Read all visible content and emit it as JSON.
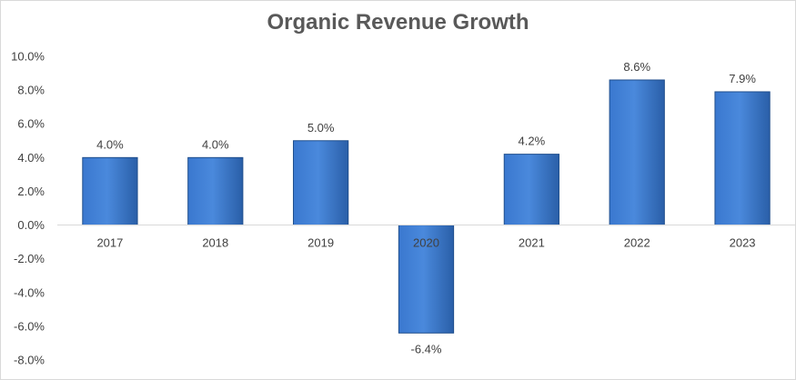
{
  "chart_data": {
    "type": "bar",
    "title": "Organic Revenue Growth",
    "categories": [
      "2017",
      "2018",
      "2019",
      "2020",
      "2021",
      "2022",
      "2023"
    ],
    "values": [
      4.0,
      4.0,
      5.0,
      -6.4,
      4.2,
      8.6,
      7.9
    ],
    "data_labels": [
      "4.0%",
      "4.0%",
      "5.0%",
      "-6.4%",
      "4.2%",
      "8.6%",
      "7.9%"
    ],
    "yticks": [
      10,
      8,
      6,
      4,
      2,
      0,
      -2,
      -4,
      -6,
      -8
    ],
    "ytick_labels": [
      "10.0%",
      "8.0%",
      "6.0%",
      "4.0%",
      "2.0%",
      "0.0%",
      "-2.0%",
      "-4.0%",
      "-6.0%",
      "-8.0%"
    ],
    "ylim": [
      -8,
      10
    ],
    "xlabel": "",
    "ylabel": "",
    "grid": false,
    "legend": "none",
    "bar_color": "#2f6fc6"
  }
}
